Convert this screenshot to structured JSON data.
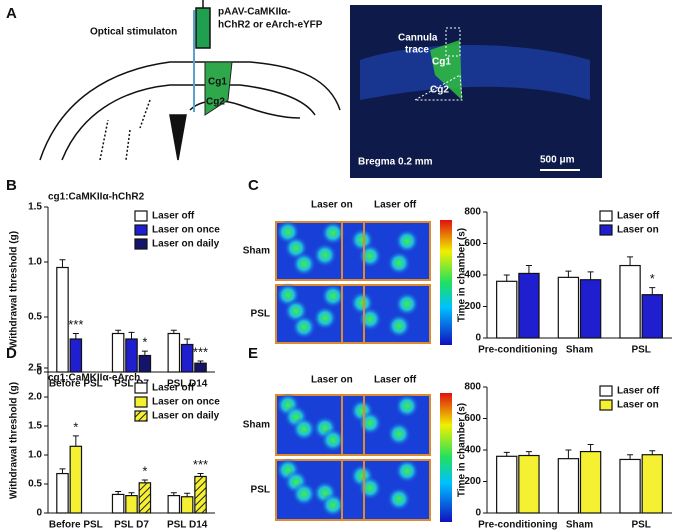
{
  "panel_labels": [
    "A",
    "B",
    "C",
    "D",
    "E"
  ],
  "schematic": {
    "stimulator": "Optical stimulaton",
    "virus_line1": "pAAV-CaMKIIα-",
    "virus_line2": "hChR2 or eArch-eYFP",
    "region1": "Cg1",
    "region2": "Cg2"
  },
  "histology": {
    "trace": [
      "Cannula",
      "trace"
    ],
    "region1": "Cg1",
    "region2": "Cg2",
    "bregma": "Bregma 0.2 mm",
    "scale": "500 μm"
  },
  "heatmaps": [
    {
      "columns": [
        "Laser on",
        "Laser off"
      ],
      "rows": [
        "Sham",
        "PSL"
      ]
    },
    {
      "columns": [
        "Laser on",
        "Laser off"
      ],
      "rows": [
        "Sham",
        "PSL"
      ]
    }
  ],
  "chart_data": [
    {
      "type": "bar",
      "title": "cg1:CaMKIIα-hChR2",
      "y_label": "Withdrawal threshold (g)",
      "legend": "upper right",
      "categories": [
        "Before PSL",
        "PSL D7",
        "PSL D14"
      ],
      "ylim": [
        0,
        1.5
      ],
      "yticks": [
        0,
        0.5,
        {
          "value": 1,
          "label": "1.0"
        },
        1.5
      ],
      "series": [
        {
          "name": "Laser off",
          "color": "#ffffff",
          "values": [
            0.95,
            0.35,
            0.35
          ],
          "errors": [
            0.07,
            0.03,
            0.03
          ],
          "significance": [
            null,
            null,
            null
          ]
        },
        {
          "name": "Laser on once",
          "color": "#1f1fcf",
          "values": [
            0.3,
            0.3,
            0.25
          ],
          "errors": [
            0.05,
            0.06,
            0.05
          ],
          "significance": [
            "***",
            null,
            null
          ]
        },
        {
          "name": "Laser on daily",
          "color": "#14146b",
          "values": [
            null,
            0.15,
            0.08
          ],
          "errors": [
            null,
            0.04,
            0.02
          ],
          "significance": [
            null,
            "*",
            "***"
          ]
        }
      ]
    },
    {
      "type": "bar",
      "y_label": "Time in chamber (s)",
      "legend": "upper right",
      "categories": [
        "Pre-conditioning",
        "Sham",
        "PSL"
      ],
      "ylim": [
        0,
        800
      ],
      "yticks": [
        0,
        200,
        400,
        600,
        800
      ],
      "series": [
        {
          "name": "Laser off",
          "color": "#ffffff",
          "values": [
            360,
            385,
            460
          ],
          "errors": [
            40,
            40,
            55
          ],
          "significance": [
            null,
            null,
            null
          ]
        },
        {
          "name": "Laser on",
          "color": "#1f1fcf",
          "values": [
            410,
            370,
            275
          ],
          "errors": [
            50,
            50,
            45
          ],
          "significance": [
            null,
            null,
            "*"
          ]
        }
      ]
    },
    {
      "type": "bar",
      "title": "cg1:CaMKIIα-eArch",
      "y_label": "Withdrawal threshold (g)",
      "legend": "upper right",
      "categories": [
        "Before PSL",
        "PSL D7",
        "PSL D14"
      ],
      "ylim": [
        0,
        2.5
      ],
      "yticks": [
        0,
        0.5,
        {
          "value": 1,
          "label": "1.0"
        },
        1.5,
        {
          "value": 2,
          "label": "2.0"
        },
        2.5
      ],
      "series": [
        {
          "name": "Laser off",
          "color": "#ffffff",
          "values": [
            0.68,
            0.32,
            0.3
          ],
          "errors": [
            0.08,
            0.05,
            0.05
          ],
          "significance": [
            null,
            null,
            null
          ]
        },
        {
          "name": "Laser on once",
          "color": "#f5f032",
          "values": [
            1.15,
            0.3,
            0.28
          ],
          "errors": [
            0.18,
            0.05,
            0.06
          ],
          "significance": [
            "*",
            null,
            null
          ]
        },
        {
          "name": "Laser on daily",
          "color": "#f5f032",
          "hatch": true,
          "values": [
            null,
            0.52,
            0.63
          ],
          "errors": [
            null,
            0.05,
            0.05
          ],
          "significance": [
            null,
            "*",
            "***"
          ]
        }
      ]
    },
    {
      "type": "bar",
      "y_label": "Time in chamber (s)",
      "legend": "upper right",
      "categories": [
        "Pre-conditioning",
        "Sham",
        "PSL"
      ],
      "ylim": [
        0,
        800
      ],
      "yticks": [
        0,
        200,
        400,
        600,
        800
      ],
      "series": [
        {
          "name": "Laser off",
          "color": "#ffffff",
          "values": [
            360,
            345,
            340
          ],
          "errors": [
            25,
            55,
            30
          ],
          "significance": [
            null,
            null,
            null
          ]
        },
        {
          "name": "Laser on",
          "color": "#f5f032",
          "values": [
            365,
            390,
            370
          ],
          "errors": [
            25,
            45,
            25
          ],
          "significance": [
            null,
            null,
            null
          ]
        }
      ]
    }
  ]
}
